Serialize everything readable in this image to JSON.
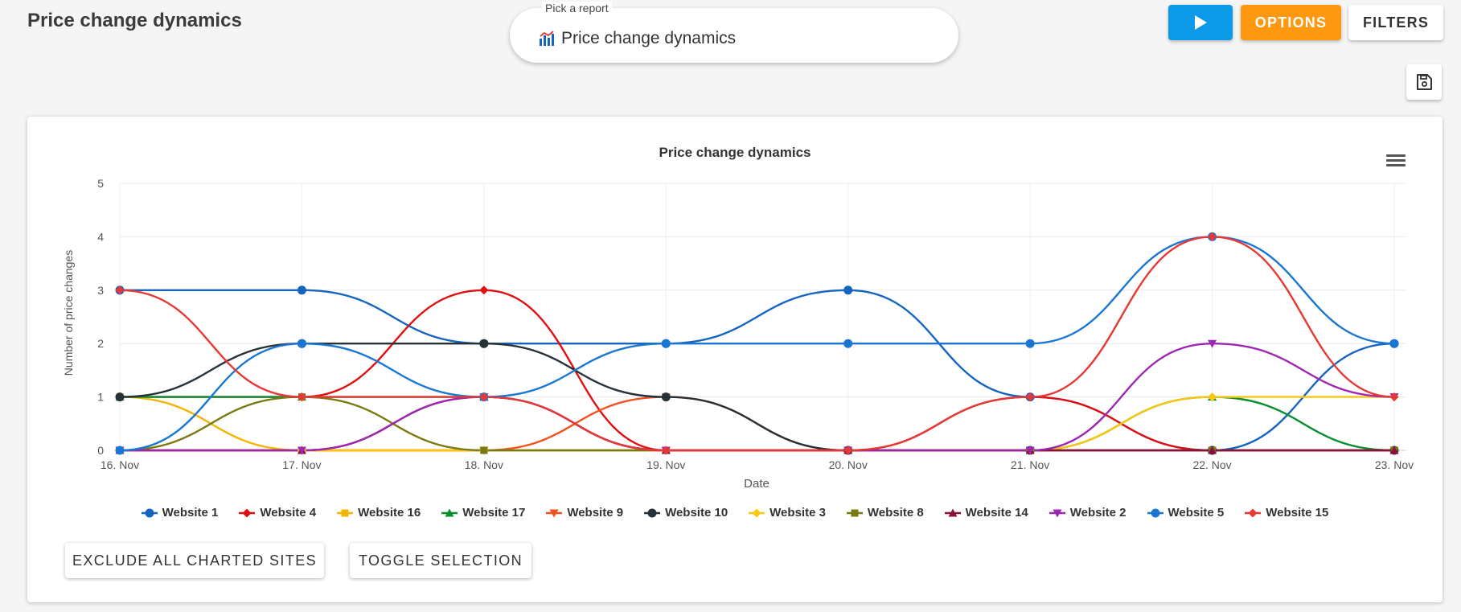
{
  "page": {
    "title": "Price change dynamics"
  },
  "report_picker": {
    "label": "Pick a report",
    "value": "Price change dynamics",
    "icon": "bar-chart-icon"
  },
  "toolbar": {
    "run_icon": "play-icon",
    "options_label": "OPTIONS",
    "filters_label": "FILTERS",
    "save_icon": "floppy-disk-icon"
  },
  "colors": {
    "run": "#0a9ae8",
    "options": "#ff9811"
  },
  "card_buttons": {
    "exclude_label": "EXCLUDE ALL CHARTED SITES",
    "toggle_label": "TOGGLE SELECTION"
  },
  "chart_data": {
    "type": "line",
    "title": "Price change dynamics",
    "xlabel": "Date",
    "ylabel": "Number of price changes",
    "categories": [
      "16. Nov",
      "17. Nov",
      "18. Nov",
      "19. Nov",
      "20. Nov",
      "21. Nov",
      "22. Nov",
      "23. Nov"
    ],
    "yticks": [
      "0",
      "1",
      "2",
      "3",
      "4",
      "5"
    ],
    "ylim": [
      0,
      5
    ],
    "grid": true,
    "legend": "bottom",
    "series": [
      {
        "name": "Website 1",
        "color": "#1565c0",
        "marker": "circle",
        "values": [
          3,
          3,
          2,
          2,
          3,
          1,
          0,
          2
        ]
      },
      {
        "name": "Website 4",
        "color": "#e01010",
        "marker": "diamond",
        "values": [
          1,
          1,
          3,
          0,
          0,
          1,
          0,
          0
        ]
      },
      {
        "name": "Website 16",
        "color": "#f4b400",
        "marker": "square",
        "values": [
          1,
          0,
          0,
          0,
          0,
          0,
          0,
          0
        ]
      },
      {
        "name": "Website 17",
        "color": "#0a8f2f",
        "marker": "triangle",
        "values": [
          1,
          1,
          1,
          0,
          0,
          0,
          1,
          0
        ]
      },
      {
        "name": "Website 9",
        "color": "#f4511e",
        "marker": "triangle-down",
        "values": [
          0,
          0,
          0,
          1,
          0,
          0,
          0,
          0
        ]
      },
      {
        "name": "Website 10",
        "color": "#263238",
        "marker": "circle",
        "values": [
          1,
          2,
          2,
          1,
          0,
          0,
          0,
          0
        ]
      },
      {
        "name": "Website 3",
        "color": "#f9c80e",
        "marker": "diamond",
        "values": [
          0,
          0,
          0,
          0,
          0,
          0,
          1,
          1
        ]
      },
      {
        "name": "Website 8",
        "color": "#7a7a12",
        "marker": "square",
        "values": [
          0,
          1,
          0,
          0,
          0,
          0,
          0,
          0
        ]
      },
      {
        "name": "Website 14",
        "color": "#8b1040",
        "marker": "triangle",
        "values": [
          0,
          0,
          1,
          0,
          0,
          0,
          0,
          0
        ]
      },
      {
        "name": "Website 2",
        "color": "#9c27b0",
        "marker": "triangle-down",
        "values": [
          0,
          0,
          1,
          0,
          0,
          0,
          2,
          1
        ]
      },
      {
        "name": "Website 5",
        "color": "#1976d2",
        "marker": "circle",
        "values": [
          0,
          2,
          1,
          2,
          2,
          2,
          4,
          2
        ]
      },
      {
        "name": "Website 15",
        "color": "#e53935",
        "marker": "diamond",
        "values": [
          3,
          1,
          1,
          0,
          0,
          1,
          4,
          1
        ]
      }
    ]
  }
}
